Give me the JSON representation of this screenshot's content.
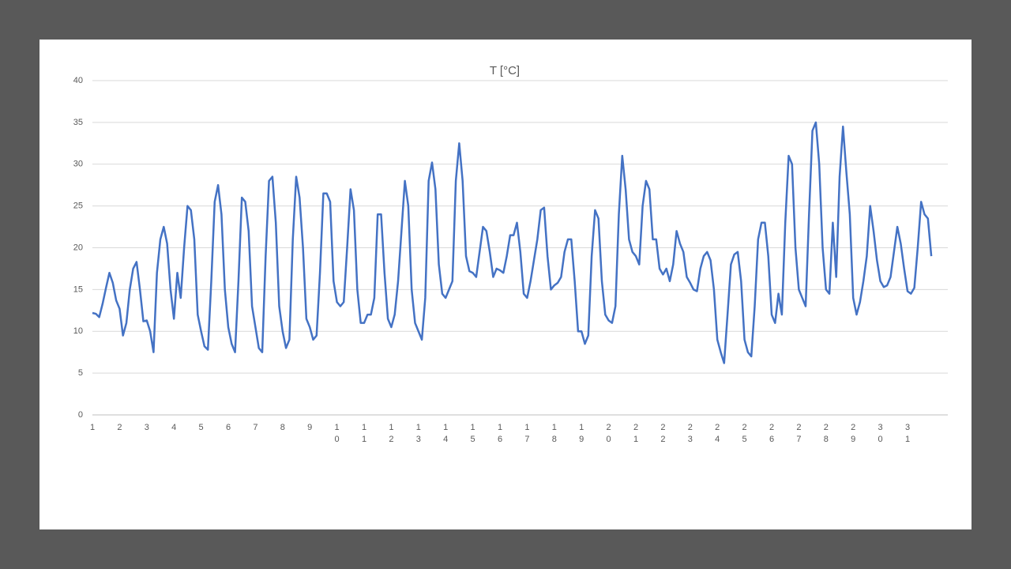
{
  "chart_data": {
    "type": "line",
    "title": "T [°C]",
    "color": "#4472c4",
    "grid": true,
    "ylim": [
      0,
      40
    ],
    "yticks": [
      0,
      5,
      10,
      15,
      20,
      25,
      30,
      35,
      40
    ],
    "categories": [
      "1",
      null,
      null,
      null,
      null,
      null,
      null,
      null,
      "2",
      null,
      null,
      null,
      null,
      null,
      null,
      null,
      "3",
      null,
      null,
      null,
      null,
      null,
      null,
      null,
      "4",
      null,
      null,
      null,
      null,
      null,
      null,
      null,
      "5",
      null,
      null,
      null,
      null,
      null,
      null,
      null,
      "6",
      null,
      null,
      null,
      null,
      null,
      null,
      null,
      "7",
      null,
      null,
      null,
      null,
      null,
      null,
      null,
      "8",
      null,
      null,
      null,
      null,
      null,
      null,
      null,
      "9",
      null,
      null,
      null,
      null,
      null,
      null,
      null,
      "10",
      null,
      null,
      null,
      null,
      null,
      null,
      null,
      "11",
      null,
      null,
      null,
      null,
      null,
      null,
      null,
      "12",
      null,
      null,
      null,
      null,
      null,
      null,
      null,
      "13",
      null,
      null,
      null,
      null,
      null,
      null,
      null,
      "14",
      null,
      null,
      null,
      null,
      null,
      null,
      null,
      "15",
      null,
      null,
      null,
      null,
      null,
      null,
      null,
      "16",
      null,
      null,
      null,
      null,
      null,
      null,
      null,
      "17",
      null,
      null,
      null,
      null,
      null,
      null,
      null,
      "18",
      null,
      null,
      null,
      null,
      null,
      null,
      null,
      "19",
      null,
      null,
      null,
      null,
      null,
      null,
      null,
      "20",
      null,
      null,
      null,
      null,
      null,
      null,
      null,
      "21",
      null,
      null,
      null,
      null,
      null,
      null,
      null,
      "22",
      null,
      null,
      null,
      null,
      null,
      null,
      null,
      "23",
      null,
      null,
      null,
      null,
      null,
      null,
      null,
      "24",
      null,
      null,
      null,
      null,
      null,
      null,
      null,
      "25",
      null,
      null,
      null,
      null,
      null,
      null,
      null,
      "26",
      null,
      null,
      null,
      null,
      null,
      null,
      null,
      "27",
      null,
      null,
      null,
      null,
      null,
      null,
      null,
      "28",
      null,
      null,
      null,
      null,
      null,
      null,
      null,
      "29",
      null,
      null,
      null,
      null,
      null,
      null,
      null,
      "30",
      null,
      null,
      null,
      null,
      null,
      null,
      null,
      "31",
      null,
      null,
      null,
      null,
      null,
      null,
      null
    ],
    "values": [
      12.2,
      12.1,
      11.7,
      13.3,
      15.2,
      17.0,
      15.8,
      13.7,
      12.7,
      9.5,
      11,
      15,
      17.5,
      18.3,
      15,
      11.2,
      11.3,
      10,
      7.5,
      17,
      21,
      22.5,
      20.5,
      15,
      11.5,
      17,
      14,
      20,
      25,
      24.5,
      21,
      12,
      10,
      8.2,
      7.8,
      16,
      25.5,
      27.5,
      24,
      15,
      10.5,
      8.5,
      7.5,
      16,
      26,
      25.5,
      22,
      13,
      10.5,
      8,
      7.5,
      19,
      28,
      28.5,
      23,
      13,
      10,
      8,
      9,
      21,
      28.5,
      26,
      20,
      11.5,
      10.5,
      9,
      9.5,
      17,
      26.5,
      26.5,
      25.5,
      16,
      13.5,
      13,
      13.5,
      20,
      27,
      24.5,
      15,
      11,
      11,
      12,
      12,
      14,
      24,
      24,
      17,
      11.5,
      10.5,
      12,
      16,
      22,
      28,
      25,
      15,
      11,
      10,
      9,
      14,
      28,
      30.2,
      27,
      18,
      14.5,
      14,
      15,
      16,
      28,
      32.5,
      28,
      19,
      17.2,
      17,
      16.5,
      19.5,
      22.5,
      22,
      19.5,
      16.5,
      17.5,
      17.3,
      17,
      19,
      21.5,
      21.5,
      23,
      19.5,
      14.5,
      14,
      16,
      18.5,
      21,
      24.5,
      24.8,
      19,
      15,
      15.5,
      15.8,
      16.5,
      19.5,
      21,
      21,
      16,
      10,
      10,
      8.5,
      9.5,
      19,
      24.5,
      23.5,
      16,
      12,
      11.3,
      11,
      13,
      24,
      31,
      27,
      21,
      19.5,
      19,
      18,
      25,
      28,
      27,
      21,
      21,
      17.5,
      16.8,
      17.5,
      16,
      18,
      22,
      20.5,
      19.5,
      16.5,
      15.8,
      15,
      14.8,
      17.5,
      19,
      19.5,
      18.5,
      15,
      9,
      7.5,
      6.2,
      12,
      18,
      19.2,
      19.5,
      16,
      9,
      7.5,
      7,
      13,
      21,
      23,
      23,
      19,
      12,
      11,
      14.5,
      12,
      23,
      31,
      30,
      20,
      15,
      14,
      13,
      24,
      34,
      35,
      30,
      20,
      15,
      14.5,
      23,
      16.5,
      28.5,
      34.5,
      29,
      24,
      14,
      12,
      13.5,
      16,
      19,
      25,
      22,
      18.5,
      16,
      15.3,
      15.5,
      16.5,
      19.5,
      22.5,
      20.5,
      17.5,
      14.8,
      14.5,
      15.2,
      20,
      25.5,
      24,
      23.5,
      19
    ]
  }
}
